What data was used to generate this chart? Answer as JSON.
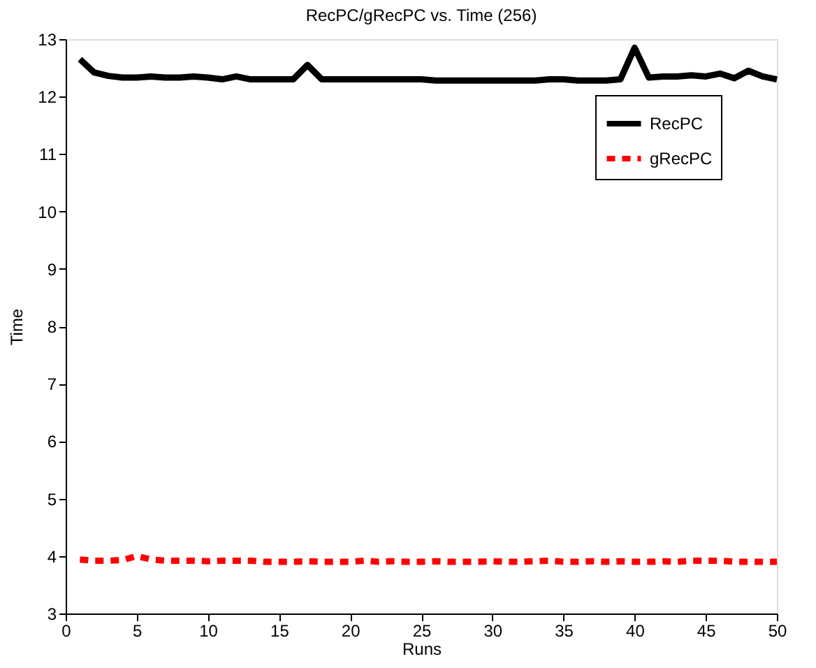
{
  "chart_data": {
    "type": "line",
    "title": "RecPC/gRecPC vs. Time (256)",
    "xlabel": "Runs",
    "ylabel": "Time",
    "x": [
      1,
      2,
      3,
      4,
      5,
      6,
      7,
      8,
      9,
      10,
      11,
      12,
      13,
      14,
      15,
      16,
      17,
      18,
      19,
      20,
      21,
      22,
      23,
      24,
      25,
      26,
      27,
      28,
      29,
      30,
      31,
      32,
      33,
      34,
      35,
      36,
      37,
      38,
      39,
      40,
      41,
      42,
      43,
      44,
      45,
      46,
      47,
      48,
      49,
      50
    ],
    "series": [
      {
        "name": "RecPC",
        "color": "#000000",
        "line_style": "solid",
        "values": [
          12.65,
          12.42,
          12.36,
          12.33,
          12.33,
          12.35,
          12.33,
          12.33,
          12.35,
          12.33,
          12.3,
          12.35,
          12.3,
          12.3,
          12.3,
          12.3,
          12.55,
          12.3,
          12.3,
          12.3,
          12.3,
          12.3,
          12.3,
          12.3,
          12.3,
          12.28,
          12.28,
          12.28,
          12.28,
          12.28,
          12.28,
          12.28,
          12.28,
          12.3,
          12.3,
          12.28,
          12.28,
          12.28,
          12.3,
          12.85,
          12.33,
          12.35,
          12.35,
          12.37,
          12.35,
          12.4,
          12.32,
          12.45,
          12.35,
          12.3
        ]
      },
      {
        "name": "gRecPC",
        "color": "#ff0000",
        "line_style": "dashed",
        "values": [
          3.94,
          3.92,
          3.92,
          3.93,
          4.0,
          3.94,
          3.92,
          3.92,
          3.92,
          3.91,
          3.92,
          3.92,
          3.92,
          3.9,
          3.9,
          3.9,
          3.91,
          3.9,
          3.9,
          3.9,
          3.92,
          3.9,
          3.91,
          3.9,
          3.9,
          3.91,
          3.9,
          3.9,
          3.9,
          3.91,
          3.9,
          3.9,
          3.91,
          3.92,
          3.9,
          3.9,
          3.91,
          3.9,
          3.91,
          3.9,
          3.9,
          3.91,
          3.9,
          3.92,
          3.92,
          3.92,
          3.9,
          3.9,
          3.9,
          3.9
        ]
      }
    ],
    "xlim": [
      0,
      50
    ],
    "xticks": [
      0,
      5,
      10,
      15,
      20,
      25,
      30,
      35,
      40,
      45,
      50
    ],
    "ylim": [
      3,
      13
    ],
    "yticks": [
      3,
      4,
      5,
      6,
      7,
      8,
      9,
      10,
      11,
      12,
      13
    ],
    "grid": false,
    "legend": "top right",
    "marker": "none"
  }
}
